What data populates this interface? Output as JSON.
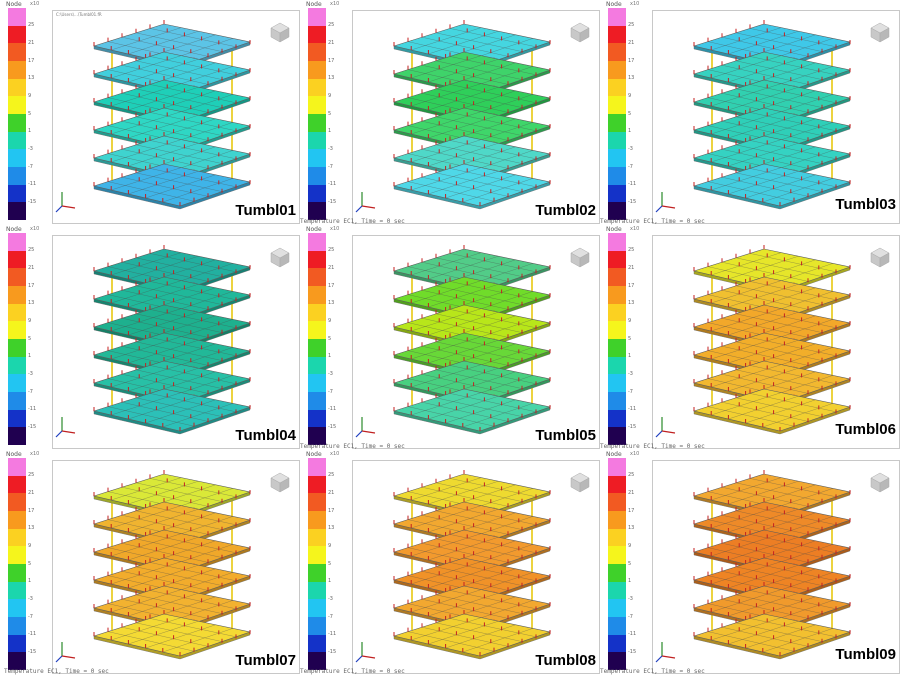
{
  "legend": {
    "title": "Node",
    "exponent": "x10",
    "ticks": [
      "25",
      "21",
      "17",
      "13",
      "9",
      "5",
      "1",
      "-3",
      "-7",
      "-11",
      "-15"
    ],
    "colors": [
      "#f47ae0",
      "#ee1c24",
      "#f25a22",
      "#f89a1e",
      "#fbd121",
      "#f5f51c",
      "#3fd12a",
      "#1bd6ad",
      "#22c5f2",
      "#1f8be8",
      "#1432c8",
      "#200050"
    ]
  },
  "footer_text": "Temperature EC1, Time = 0 sec",
  "path_text": "C:\\Users\\...\\Tumbl01.fR",
  "panels": [
    {
      "label": "Tumbl01",
      "plates": [
        "#5cc4e6",
        "#41cfdd",
        "#1fcfb8",
        "#2fd7c4",
        "#3fd3cf",
        "#3fb4e8"
      ]
    },
    {
      "label": "Tumbl02",
      "plates": [
        "#45d6e0",
        "#3fd36a",
        "#2fcf5a",
        "#3fd66a",
        "#4fd8c8",
        "#4fd8e8"
      ]
    },
    {
      "label": "Tumbl03",
      "plates": [
        "#3fc8e8",
        "#37d2c0",
        "#31d0b0",
        "#2fcfb8",
        "#35d2c2",
        "#43cde0"
      ]
    },
    {
      "label": "Tumbl04",
      "plates": [
        "#22b0a0",
        "#20b89a",
        "#1eb08e",
        "#22b898",
        "#28c0a6",
        "#2cc0b8"
      ]
    },
    {
      "label": "Tumbl05",
      "plates": [
        "#52cc88",
        "#70dc2a",
        "#b8e61a",
        "#68d838",
        "#48d080",
        "#48d4a8"
      ]
    },
    {
      "label": "Tumbl06",
      "plates": [
        "#e6e62a",
        "#f0c030",
        "#f2a82a",
        "#f2ae2a",
        "#f2b830",
        "#f2d030"
      ]
    },
    {
      "label": "Tumbl07",
      "plates": [
        "#dae838",
        "#f0b430",
        "#f0a82a",
        "#f2ac2c",
        "#f2b230",
        "#f4da34"
      ]
    },
    {
      "label": "Tumbl08",
      "plates": [
        "#eeda30",
        "#f2a830",
        "#f29a2e",
        "#f09228",
        "#f2a830",
        "#f2d030"
      ]
    },
    {
      "label": "Tumbl09",
      "plates": [
        "#f2a830",
        "#ee8a28",
        "#ec7e24",
        "#ee8424",
        "#f09a2c",
        "#f2c030"
      ]
    }
  ]
}
